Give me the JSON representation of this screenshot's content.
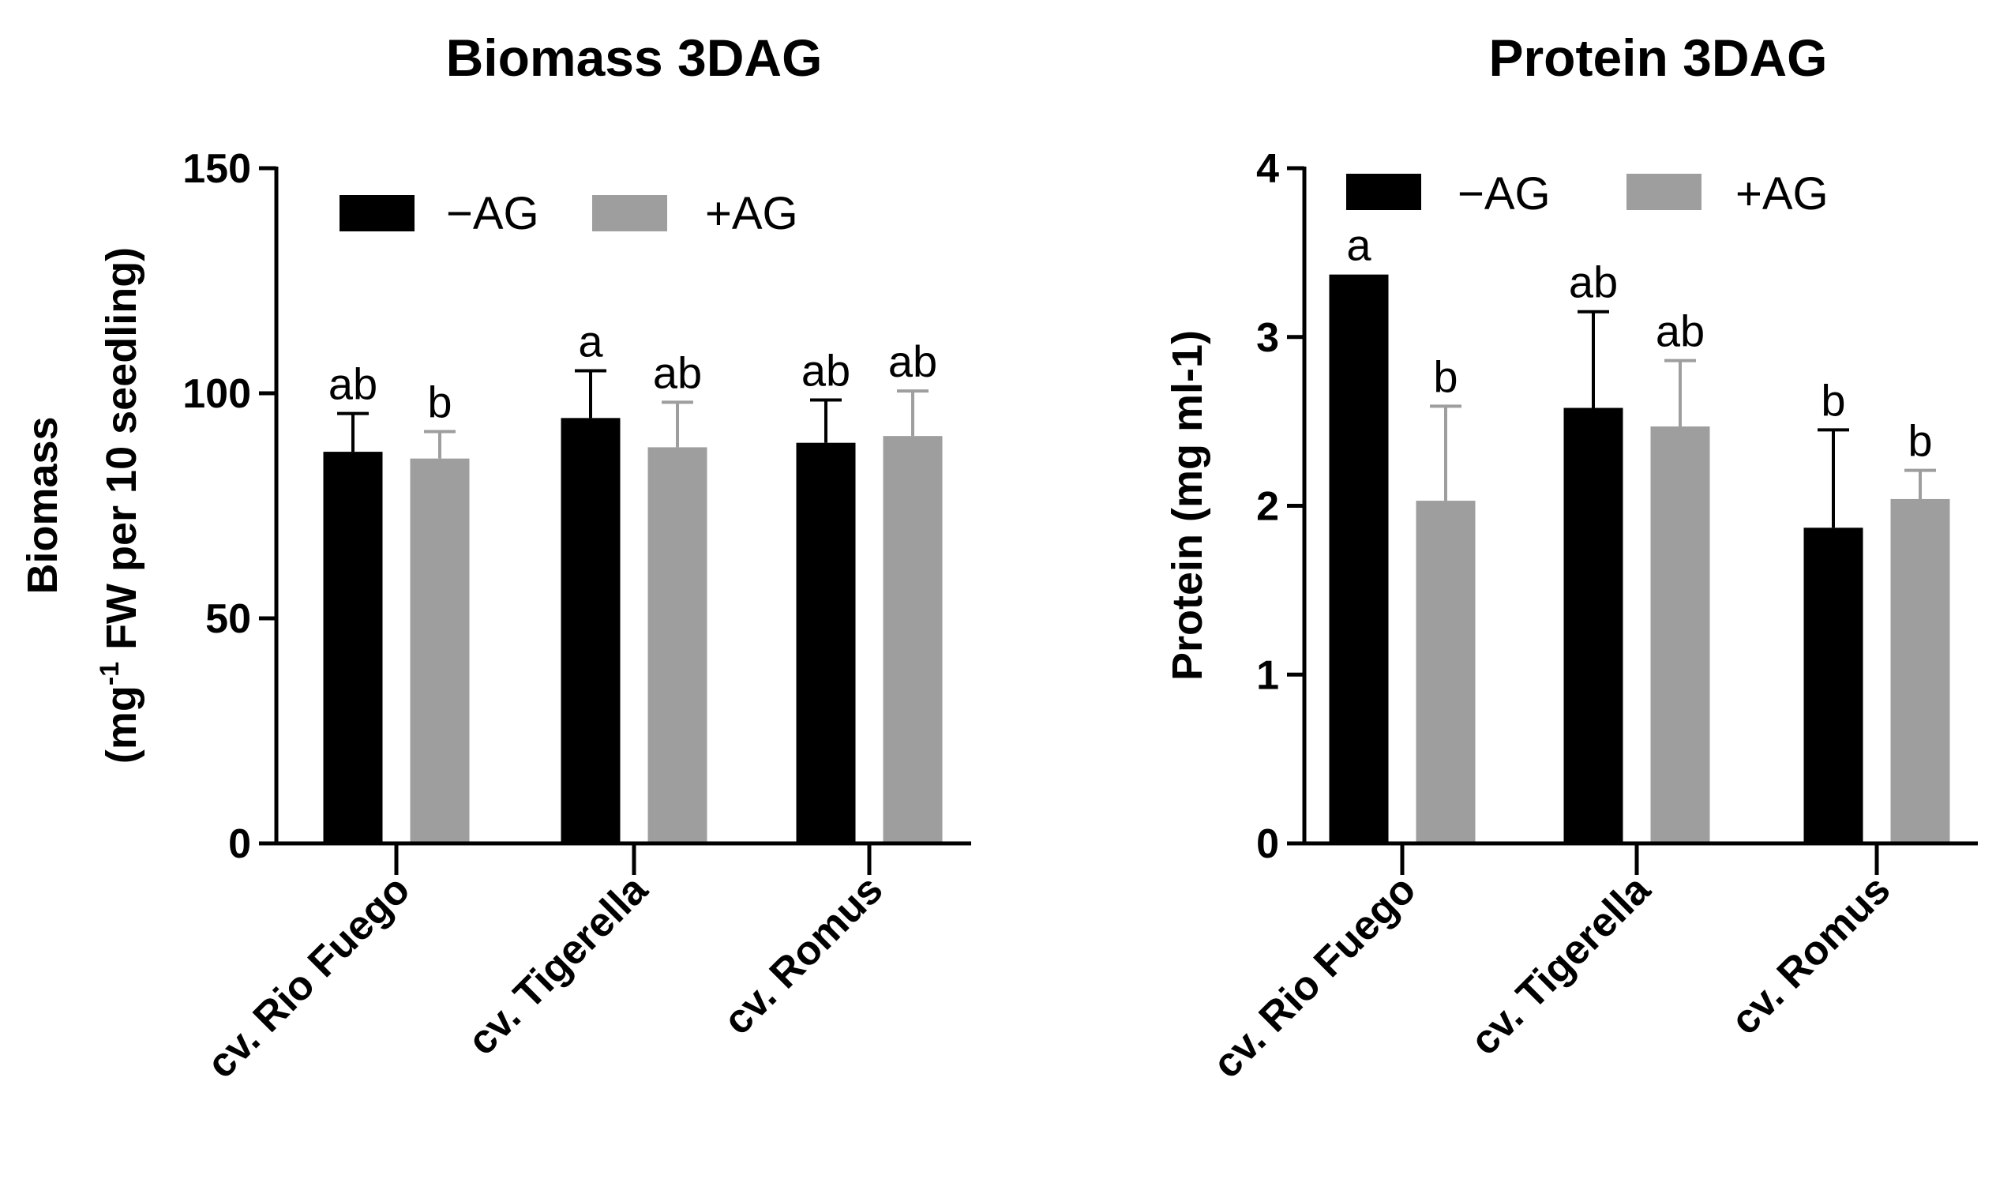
{
  "colors": {
    "minus": "#000000",
    "plus": "#9e9e9e",
    "axis": "#000000"
  },
  "chart_data": [
    {
      "type": "bar",
      "title": "Biomass 3DAG",
      "ylabel_line1": "Biomass",
      "ylabel_line2_pre": "(mg",
      "ylabel_line2_sup": "-1",
      "ylabel_line2_post": " FW per 10 seedling)",
      "ylim": [
        0,
        150
      ],
      "yticks": [
        "0",
        "50",
        "100",
        "150"
      ],
      "categories": [
        "cv. Rio Fuego",
        "cv. Tigerella",
        "cv. Romus"
      ],
      "legend": {
        "position": "top-left",
        "entries": [
          "−AG",
          "+AG"
        ]
      },
      "series": [
        {
          "name": "−AG",
          "values": [
            87,
            94.5,
            89
          ],
          "errors": [
            8.5,
            10.5,
            9.5
          ],
          "letters": [
            "ab",
            "a",
            "ab"
          ]
        },
        {
          "name": "+AG",
          "values": [
            85.5,
            88,
            90.5
          ],
          "errors": [
            6,
            10,
            10
          ],
          "letters": [
            "b",
            "ab",
            "ab"
          ]
        }
      ]
    },
    {
      "type": "bar",
      "title": "Protein 3DAG",
      "ylabel": "Protein (mg ml-1)",
      "ylim": [
        0,
        4
      ],
      "yticks": [
        "0",
        "1",
        "2",
        "3",
        "4"
      ],
      "categories": [
        "cv. Rio Fuego",
        "cv. Tigerella",
        "cv. Romus"
      ],
      "legend": {
        "position": "top-left",
        "entries": [
          "−AG",
          "+AG"
        ]
      },
      "series": [
        {
          "name": "−AG",
          "values": [
            3.37,
            2.58,
            1.87
          ],
          "errors": [
            0,
            0.57,
            0.58
          ],
          "letters": [
            "a",
            "ab",
            "b"
          ]
        },
        {
          "name": "+AG",
          "values": [
            2.03,
            2.47,
            2.04
          ],
          "errors": [
            0.56,
            0.39,
            0.17
          ],
          "letters": [
            "b",
            "ab",
            "b"
          ]
        }
      ]
    }
  ]
}
